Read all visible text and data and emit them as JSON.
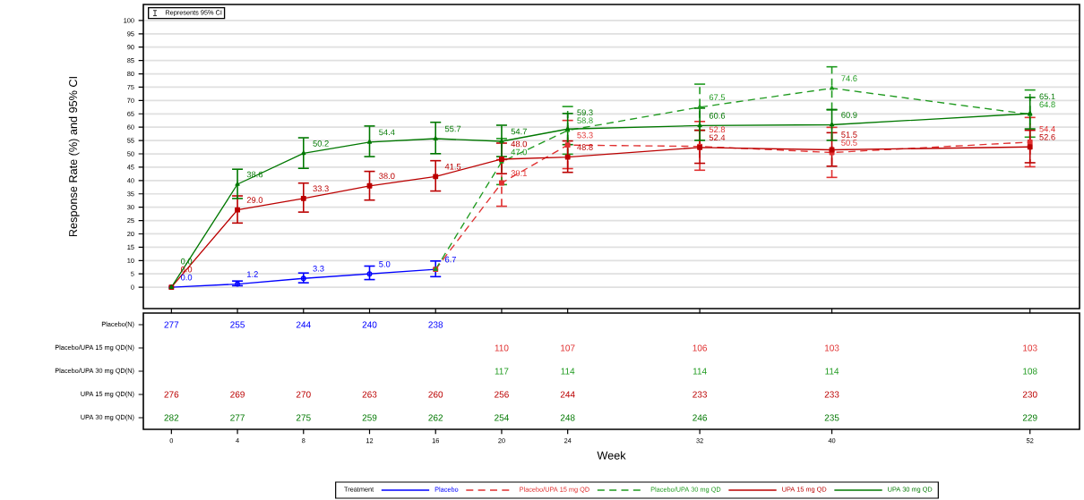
{
  "chart_data": [
    {
      "type": "line",
      "ylabel": "Response Rate (%) and 95% CI",
      "legend_title": "Treatment",
      "annotations": [
        "Represents 95% CI"
      ],
      "xlim": [
        -1.7,
        55
      ],
      "xticks": [
        0,
        4,
        8,
        12,
        16,
        20,
        24,
        32,
        40,
        52
      ],
      "ylim": [
        -8,
        106
      ],
      "yticks": [
        0,
        5,
        10,
        15,
        20,
        25,
        30,
        35,
        40,
        45,
        50,
        55,
        60,
        65,
        70,
        75,
        80,
        85,
        90,
        95,
        100
      ],
      "grid": "y",
      "legend": "bottom",
      "tick_labels": "y",
      "series": [
        {
          "name": "Placebo",
          "color": "#0000ff",
          "marker": "circle",
          "line_style": "solid",
          "x": [
            0,
            4,
            8,
            12,
            16
          ],
          "values": [
            0.0,
            1.2,
            3.3,
            5.0,
            6.7
          ],
          "value_labels": [
            "0.0",
            "1.2",
            "3.3",
            "5.0",
            "6.7"
          ],
          "errors": [
            null,
            [
              0.3,
              2.6
            ],
            [
              1.4,
              5.6
            ],
            [
              2.6,
              8.2
            ],
            [
              3.7,
              10.1
            ]
          ]
        },
        {
          "name": "Placebo/UPA 15 mg QD",
          "color": "#e03030",
          "marker": "square",
          "line_style": "dashed",
          "x": [
            16,
            20,
            24,
            32,
            40,
            52
          ],
          "values": [
            6.7,
            39.1,
            53.3,
            52.8,
            50.5,
            54.4
          ],
          "value_labels": [
            null,
            "39.1",
            "53.3",
            "52.8",
            "50.5",
            "54.4"
          ],
          "errors": [
            null,
            [
              30.1,
              48.1
            ],
            [
              44.2,
              62.8
            ],
            [
              43.6,
              62.4
            ],
            [
              40.9,
              60.2
            ],
            [
              44.9,
              63.9
            ]
          ]
        },
        {
          "name": "Placebo/UPA 30 mg QD",
          "color": "#1f9a1f",
          "marker": "triangle",
          "line_style": "dashed",
          "x": [
            16,
            20,
            24,
            32,
            40,
            52
          ],
          "values": [
            6.7,
            47.0,
            58.8,
            67.5,
            74.6,
            64.8
          ],
          "value_labels": [
            null,
            "47.0",
            "58.8",
            "67.5",
            "74.6",
            "64.8"
          ],
          "errors": [
            null,
            [
              38.2,
              56.0
            ],
            [
              49.6,
              68.0
            ],
            [
              58.6,
              76.4
            ],
            [
              66.2,
              82.9
            ],
            [
              56.0,
              74.2
            ]
          ]
        },
        {
          "name": "UPA 15 mg QD",
          "color": "#bb0000",
          "marker": "square",
          "line_style": "solid",
          "x": [
            0,
            4,
            8,
            12,
            16,
            20,
            24,
            32,
            40,
            52
          ],
          "values": [
            0.0,
            29.0,
            33.3,
            38.0,
            41.5,
            48.0,
            48.8,
            52.4,
            51.5,
            52.6
          ],
          "value_labels": [
            "0.0",
            "29.0",
            "33.3",
            "38.0",
            "41.5",
            "48.0",
            "48.8",
            "52.4",
            "51.5",
            "52.6"
          ],
          "errors": [
            null,
            [
              23.8,
              34.5
            ],
            [
              27.9,
              39.3
            ],
            [
              32.4,
              43.7
            ],
            [
              35.8,
              47.7
            ],
            [
              42.3,
              54.3
            ],
            [
              42.8,
              55.1
            ],
            [
              46.2,
              59.1
            ],
            [
              45.1,
              58.2
            ],
            [
              46.4,
              59.1
            ]
          ]
        },
        {
          "name": "UPA 30 mg QD",
          "color": "#007800",
          "marker": "triangle",
          "line_style": "solid",
          "x": [
            0,
            4,
            8,
            12,
            16,
            20,
            24,
            32,
            40,
            52
          ],
          "values": [
            0.0,
            38.6,
            50.2,
            54.4,
            55.7,
            54.7,
            59.3,
            60.6,
            60.9,
            65.1
          ],
          "value_labels": [
            "0.0",
            "38.6",
            "50.2",
            "54.4",
            "55.7",
            "54.7",
            "59.3",
            "60.6",
            "60.9",
            "65.1"
          ],
          "errors": [
            null,
            [
              33.0,
              44.5
            ],
            [
              44.3,
              56.3
            ],
            [
              48.7,
              60.7
            ],
            [
              49.8,
              62.1
            ],
            [
              48.7,
              61.0
            ],
            [
              53.2,
              65.4
            ],
            [
              54.8,
              67.4
            ],
            [
              54.8,
              66.9
            ],
            [
              59.1,
              71.4
            ]
          ]
        }
      ]
    },
    {
      "type": "heatmap",
      "data_labels": true,
      "xlabel": "Week",
      "x": [
        0,
        4,
        8,
        12,
        16,
        20,
        24,
        32,
        40,
        52
      ],
      "xlim": [
        -1.7,
        55
      ],
      "xticks": [
        0,
        4,
        8,
        12,
        16,
        20,
        24,
        32,
        40,
        52
      ],
      "y_categories": [
        "Placebo(N)",
        "Placebo/UPA 15 mg QD(N)",
        "Placebo/UPA 30 mg QD(N)",
        "UPA 15 mg QD(N)",
        "UPA 30 mg QD(N)"
      ],
      "colors": [
        "#0000ff",
        "#e03030",
        "#1f9a1f",
        "#bb0000",
        "#007800"
      ],
      "cells": [
        [
          277,
          255,
          244,
          240,
          238,
          null,
          null,
          null,
          null,
          null
        ],
        [
          null,
          null,
          null,
          null,
          null,
          110,
          107,
          106,
          103,
          103
        ],
        [
          null,
          null,
          null,
          null,
          null,
          117,
          114,
          114,
          114,
          108
        ],
        [
          276,
          269,
          270,
          263,
          260,
          256,
          244,
          233,
          233,
          230
        ],
        [
          282,
          277,
          275,
          259,
          262,
          254,
          248,
          246,
          235,
          229
        ]
      ]
    }
  ]
}
